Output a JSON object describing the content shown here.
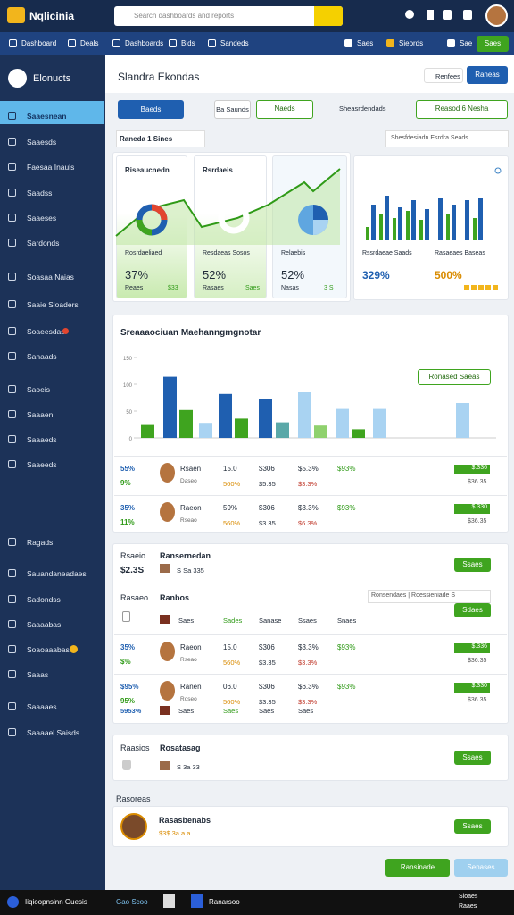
{
  "topbar": {
    "brand": "Nqlicinia",
    "search": "Search dashboards and reports"
  },
  "nav": {
    "items": [
      "Dashboard",
      "Deals",
      "Dashboards",
      "Bids",
      "Sandeds"
    ],
    "right": [
      "Saes",
      "Sieords",
      "Sae"
    ],
    "button": "Saes"
  },
  "sidebar": {
    "title": "Elonucts",
    "items": [
      "Saaesnean",
      "Saaesds",
      "Faesaa Inauls",
      "Saadss",
      "Saaeses",
      "Sardonds",
      "Soasaa Naias",
      "Saaie Sloaders",
      "Soaeesdas",
      "Sanaads",
      "Saoeis",
      "Saaaen",
      "Saaaeds",
      "Saaeeds",
      "Ragads",
      "Sauandaneadaes",
      "Sadondss",
      "Saaaabas",
      "Soaoaaabas",
      "Saaas",
      "Saaaaes",
      "Saaaael Saisds"
    ]
  },
  "header": {
    "title": "Slandra Ekondas",
    "action": "Renfees",
    "button": "Raneas"
  },
  "toolbar": {
    "buttons": [
      "Baeds",
      "Ba Saunds",
      "Naeds"
    ],
    "link": "Sheasrdendads",
    "button": "Reasod 6 Nesha"
  },
  "filter": {
    "label": "Raneda 1 Sines",
    "select": "Shesfdesiadn Esrdra Seads"
  },
  "cards": [
    {
      "title": "Riseaucnedn",
      "sub": "Rosrdaeliaed",
      "value": "37%",
      "meta": "Reaes",
      "note": "$33"
    },
    {
      "title": "Rsrdaeis",
      "sub": "Resdaeas Sosos",
      "value": "52%",
      "meta": "Rasaes",
      "note": "Saes"
    },
    {
      "sub": "Relaebis",
      "value": "52%",
      "meta": "Nasas",
      "note": "3 S"
    },
    {
      "sub": "Rssrdaeae Saads",
      "value": "329%",
      "sub2": "Rasaeaes Baseas",
      "value2": "500%"
    }
  ],
  "chart_data": {
    "type": "bar",
    "title": "Sreaaaociuan Maehanngmgnotar",
    "button": "Ronased Saeas",
    "values": [
      24,
      114,
      52,
      28,
      82,
      36,
      72,
      29,
      85,
      23,
      54,
      16,
      54,
      65
    ],
    "colors": [
      "#3fa41f",
      "#1f5fb0",
      "#3fa41f",
      "#a9d3f2",
      "#1f5fb0",
      "#3fa41f",
      "#1f5fb0",
      "#5aa8a8",
      "#a9d3f2",
      "#8fd16e",
      "#a9d3f2",
      "#3fa41f",
      "#a9d3f2",
      "#a9d3f2"
    ],
    "ylim": [
      0,
      150
    ],
    "yticks": [
      0,
      50,
      100,
      150
    ]
  },
  "table1": {
    "rows": [
      {
        "stats": [
          "55%",
          "9%"
        ],
        "name": "Rsaen",
        "role": "Daseo",
        "values": [
          "15.0",
          "$306",
          "$5.3%",
          "$93%"
        ],
        "subs": [
          "560%",
          "$5.35",
          "$3.3%"
        ],
        "badge": "$.336",
        "note": "$36.35"
      },
      {
        "stats": [
          "35%",
          "11%"
        ],
        "name": "Raeon",
        "role": "Rseao",
        "values": [
          "59%",
          "$306",
          "$3.3%",
          "$93%"
        ],
        "subs": [
          "560%",
          "$3.35",
          "$6.3%"
        ],
        "badge": "$.330",
        "note": "$36.35"
      }
    ]
  },
  "section2": {
    "label": "Rsaeio",
    "stat": "$2.3S",
    "title": "Ransernedan",
    "sub": "S Sa 335",
    "button": "Ssaes",
    "label2": "Rasaeo",
    "title2": "Ranbos",
    "select": "Ronsendaes | Roessieniade S",
    "button2": "Sdaes",
    "columns": [
      "Saes",
      "Sades",
      "Sanase",
      "Ssaes",
      "Snaes"
    ],
    "rows": [
      {
        "stats": [
          "35%",
          "$%"
        ],
        "name": "Raeon",
        "role": "Rseao",
        "values": [
          "15.0",
          "$306",
          "$3.3%",
          "$93%"
        ],
        "subs": [
          "560%",
          "$3.35",
          "$3.3%"
        ],
        "badge": "$.336",
        "note": "$36.35"
      },
      {
        "stats": [
          "$95%",
          "95%"
        ],
        "name": "Ranen",
        "role": "Roseo",
        "values": [
          "06.0",
          "$306",
          "$6.3%",
          "$93%"
        ],
        "subs": [
          "560%",
          "$3.35",
          "$3.3%"
        ],
        "badge": "$.330",
        "note": "$36.35"
      }
    ],
    "footer": [
      "5953%",
      "Saes",
      "Saes",
      "Saes",
      "Saes"
    ]
  },
  "section3": {
    "label": "Raasios",
    "title": "Rosatasag",
    "sub": "S 3a 33",
    "button": "Ssaes"
  },
  "section4": {
    "label": "Rasoreas",
    "title": "Rasasbenabs",
    "sub": "$3$ 3a a a",
    "button": "Ssaes"
  },
  "actions": [
    "Ransinade",
    "Senases"
  ],
  "taskbar": {
    "app": "Iiqioopnsinn Guesis",
    "items": [
      "Gao Scoo",
      "Ranarsoo"
    ],
    "right": [
      "Sioaes",
      "Raaes"
    ]
  }
}
